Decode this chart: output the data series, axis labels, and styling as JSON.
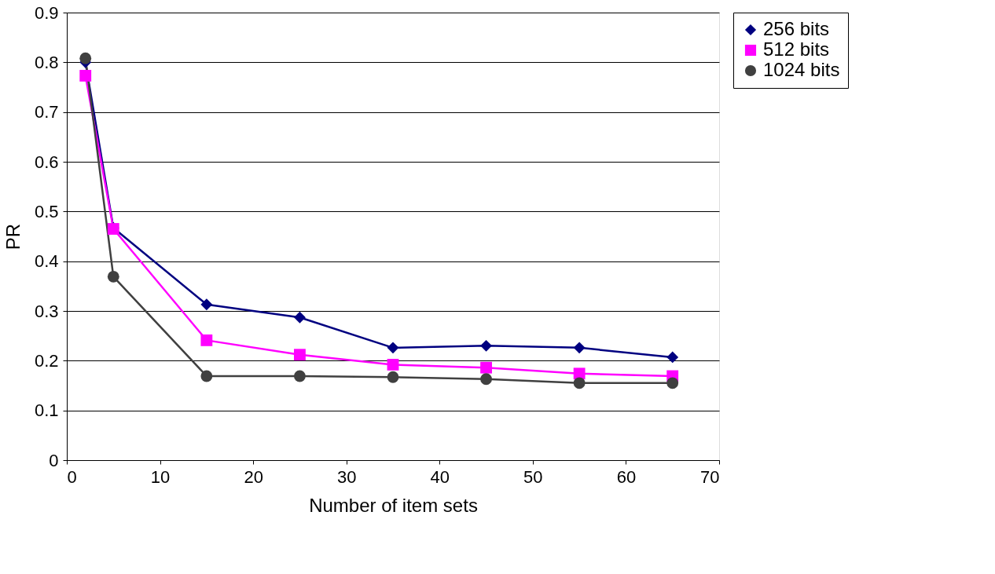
{
  "chart_data": {
    "type": "line",
    "xlabel": "Number of item sets",
    "ylabel": "PR",
    "x": [
      2,
      5,
      15,
      25,
      35,
      45,
      55,
      65
    ],
    "series": [
      {
        "name": "256 bits",
        "color": "#000080",
        "marker": "diamond",
        "values": [
          0.8,
          0.467,
          0.313,
          0.287,
          0.226,
          0.23,
          0.226,
          0.207
        ]
      },
      {
        "name": "512 bits",
        "color": "#ff00ff",
        "marker": "square",
        "values": [
          0.773,
          0.465,
          0.241,
          0.212,
          0.192,
          0.186,
          0.174,
          0.169
        ]
      },
      {
        "name": "1024 bits",
        "color": "#404040",
        "marker": "circle",
        "values": [
          0.808,
          0.369,
          0.169,
          0.169,
          0.167,
          0.163,
          0.155,
          0.155
        ]
      }
    ],
    "xlim": [
      0,
      70
    ],
    "xticks": [
      0,
      10,
      20,
      30,
      40,
      50,
      60,
      70
    ],
    "ylim": [
      0,
      0.9
    ],
    "yticks": [
      0,
      0.1,
      0.2,
      0.3,
      0.4,
      0.5,
      0.6,
      0.7,
      0.8,
      0.9
    ],
    "grid": "y",
    "legend": "right"
  }
}
